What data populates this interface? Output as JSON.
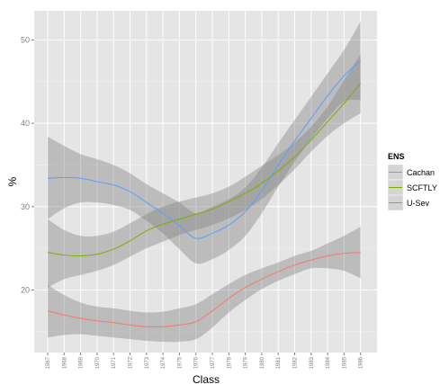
{
  "chart_data": {
    "type": "line",
    "xlabel": "Class",
    "ylabel": "%",
    "categories": [
      "1967",
      "1968",
      "1969",
      "1970",
      "1971",
      "1972",
      "1973",
      "1974",
      "1975",
      "1976",
      "1977",
      "1978",
      "1979",
      "1980",
      "1981",
      "1982",
      "1983",
      "1984",
      "1985",
      "1986"
    ],
    "ylim": [
      12.5,
      53.5
    ],
    "yticks": [
      20,
      30,
      40,
      50
    ],
    "grid": true,
    "panel_background": "#e5e5e5",
    "legend": {
      "title": "ENS",
      "placement": "right"
    },
    "series": [
      {
        "name": "Cachan",
        "color": "#f8766d",
        "values": [
          17.5,
          17.0,
          16.6,
          16.3,
          16.1,
          15.8,
          15.6,
          15.6,
          15.8,
          16.2,
          17.5,
          19.0,
          20.3,
          21.3,
          22.2,
          23.0,
          23.6,
          24.1,
          24.4,
          24.5
        ],
        "ci_lower": [
          14.3,
          14.6,
          14.7,
          14.5,
          14.3,
          14.1,
          13.9,
          13.8,
          13.8,
          14.1,
          15.5,
          17.3,
          18.8,
          20.1,
          21.1,
          21.9,
          22.6,
          22.6,
          22.3,
          21.4
        ],
        "ci_upper": [
          20.6,
          19.4,
          18.5,
          18.0,
          17.8,
          17.5,
          17.3,
          17.4,
          17.8,
          18.3,
          19.5,
          20.7,
          21.8,
          22.6,
          23.3,
          24.1,
          24.7,
          25.6,
          26.5,
          27.6
        ]
      },
      {
        "name": "SCFTLY",
        "color": "#7cae00",
        "values": [
          24.5,
          24.2,
          24.1,
          24.3,
          24.9,
          25.9,
          27.1,
          27.9,
          28.5,
          29.1,
          29.7,
          30.6,
          31.6,
          32.8,
          34.3,
          36.0,
          38.0,
          40.2,
          42.4,
          44.8
        ],
        "ci_lower": [
          20.3,
          21.3,
          21.8,
          22.3,
          23.0,
          24.0,
          25.0,
          25.8,
          26.6,
          27.2,
          27.8,
          28.6,
          29.6,
          30.9,
          32.6,
          34.5,
          36.6,
          38.5,
          40.0,
          41.2
        ],
        "ci_upper": [
          28.5,
          27.2,
          26.5,
          26.5,
          27.0,
          28.0,
          29.1,
          30.0,
          30.6,
          31.1,
          31.6,
          32.4,
          33.6,
          34.9,
          36.2,
          37.7,
          39.6,
          42.0,
          45.2,
          48.3
        ]
      },
      {
        "name": "U-Sev",
        "color": "#619cff",
        "values": [
          33.4,
          33.5,
          33.4,
          33.0,
          32.6,
          31.8,
          30.5,
          29.2,
          27.7,
          26.2,
          26.8,
          27.8,
          29.4,
          31.9,
          35.0,
          37.9,
          40.6,
          43.3,
          45.7,
          47.5
        ],
        "ci_lower": [
          28.5,
          29.8,
          30.5,
          30.5,
          30.2,
          29.6,
          28.3,
          26.8,
          24.9,
          23.2,
          23.7,
          24.8,
          26.5,
          29.2,
          32.4,
          35.4,
          38.1,
          40.6,
          42.6,
          42.8
        ],
        "ci_upper": [
          38.4,
          37.3,
          36.3,
          35.7,
          35.0,
          34.0,
          32.7,
          31.6,
          30.5,
          29.2,
          30.0,
          30.9,
          32.3,
          34.7,
          37.6,
          40.4,
          43.2,
          46.0,
          48.8,
          52.2
        ]
      }
    ]
  }
}
